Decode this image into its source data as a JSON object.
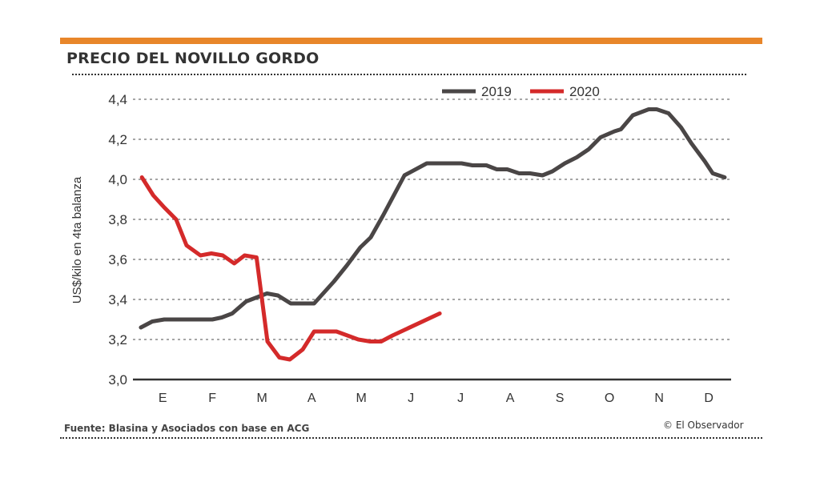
{
  "header": {
    "title": "PRECIO DEL NOVILLO GORDO"
  },
  "footer": {
    "source": "Fuente: Blasina y Asociados con base en ACG",
    "credit": "© El Observador"
  },
  "colors": {
    "accent": "#e8862a",
    "series2019": "#4a4646",
    "series2020": "#d42a2a"
  },
  "chart_data": {
    "type": "line",
    "title": "PRECIO DEL NOVILLO GORDO",
    "xlabel": "",
    "ylabel": "US$/kilo en 4ta balanza",
    "ylim": [
      3.0,
      4.4
    ],
    "xlim": [
      -0.6,
      11.45
    ],
    "yticks": [
      3.0,
      3.2,
      3.4,
      3.6,
      3.8,
      4.0,
      4.2,
      4.4
    ],
    "ytick_labels": [
      "3,0",
      "3,2",
      "3,4",
      "3,6",
      "3,8",
      "4,0",
      "4,2",
      "4,4"
    ],
    "categories": [
      "E",
      "F",
      "M",
      "A",
      "M",
      "J",
      "J",
      "A",
      "S",
      "O",
      "N",
      "D"
    ],
    "legend_position": "top-right",
    "grid": true,
    "series": [
      {
        "name": "2019",
        "color": "#4a4646",
        "x": [
          -0.44,
          -0.21,
          0.03,
          1.0,
          1.19,
          1.4,
          1.68,
          2.1,
          2.32,
          2.58,
          3.05,
          3.45,
          3.71,
          3.98,
          4.19,
          4.44,
          4.87,
          5.32,
          6.02,
          6.24,
          6.52,
          6.73,
          6.94,
          7.18,
          7.4,
          7.65,
          7.85,
          8.1,
          8.34,
          8.58,
          8.82,
          9.1,
          9.23,
          9.47,
          9.79,
          9.95,
          10.19,
          10.44,
          10.65,
          10.92,
          11.08,
          11.32
        ],
        "y": [
          3.26,
          3.29,
          3.3,
          3.3,
          3.31,
          3.33,
          3.39,
          3.43,
          3.42,
          3.38,
          3.38,
          3.49,
          3.57,
          3.66,
          3.71,
          3.82,
          4.02,
          4.08,
          4.08,
          4.07,
          4.07,
          4.05,
          4.05,
          4.03,
          4.03,
          4.02,
          4.04,
          4.08,
          4.11,
          4.15,
          4.21,
          4.24,
          4.25,
          4.32,
          4.35,
          4.35,
          4.33,
          4.26,
          4.18,
          4.09,
          4.03,
          4.01
        ]
      },
      {
        "name": "2020",
        "color": "#d42a2a",
        "x": [
          -0.42,
          -0.19,
          0.03,
          0.27,
          0.48,
          0.76,
          0.98,
          1.21,
          1.44,
          1.65,
          1.89,
          2.11,
          2.35,
          2.56,
          2.82,
          3.05,
          3.5,
          3.94,
          4.18,
          4.4,
          4.63,
          5.58
        ],
        "y": [
          4.01,
          3.92,
          3.86,
          3.8,
          3.67,
          3.62,
          3.63,
          3.62,
          3.58,
          3.62,
          3.61,
          3.19,
          3.11,
          3.1,
          3.15,
          3.24,
          3.24,
          3.2,
          3.19,
          3.19,
          3.22,
          3.33
        ]
      }
    ]
  }
}
